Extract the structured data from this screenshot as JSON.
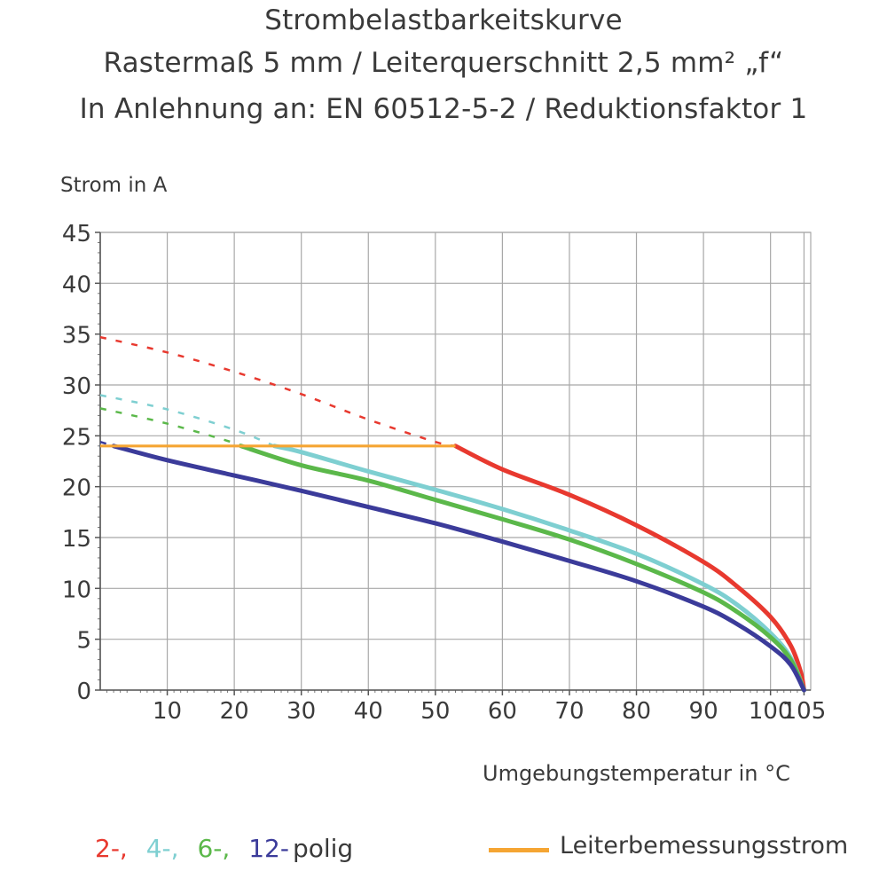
{
  "chart_data": {
    "type": "line",
    "title": "Strombelastbarkeitskurve",
    "subtitle_lines": [
      "Rastermaß 5 mm / Leiterquerschnitt 2,5 mm² „f“",
      "In Anlehnung an: EN 60512-5-2 / Reduktionsfaktor 1"
    ],
    "ylabel": "Strom in A",
    "xlabel": "Umgebungstemperatur in °C",
    "xlim": [
      0,
      106
    ],
    "ylim": [
      0,
      45
    ],
    "x_ticks": [
      10,
      20,
      30,
      40,
      50,
      60,
      70,
      80,
      90,
      100,
      105
    ],
    "x_tick_labels": [
      "10",
      "20",
      "30",
      "40",
      "50",
      "60",
      "70",
      "80",
      "90",
      "100",
      "105"
    ],
    "y_ticks": [
      0,
      5,
      10,
      15,
      20,
      25,
      30,
      35,
      40,
      45
    ],
    "y_tick_labels": [
      "0",
      "5",
      "10",
      "15",
      "20",
      "25",
      "30",
      "35",
      "40",
      "45"
    ],
    "grid": true,
    "rated_current": {
      "name": "Leiterbemessungsstrom",
      "value": 24,
      "x_range": [
        0,
        53
      ],
      "color": "#f5a533"
    },
    "series": [
      {
        "name": "2-",
        "color": "#e8392f",
        "dashed": [
          [
            0,
            34.7
          ],
          [
            10,
            33.2
          ],
          [
            20,
            31.3
          ],
          [
            30,
            29.1
          ],
          [
            40,
            26.6
          ],
          [
            50,
            24.4
          ],
          [
            53,
            24
          ]
        ],
        "solid": [
          [
            53,
            24
          ],
          [
            60,
            21.7
          ],
          [
            70,
            19.2
          ],
          [
            80,
            16.2
          ],
          [
            90,
            12.6
          ],
          [
            95,
            10.2
          ],
          [
            100,
            7.2
          ],
          [
            103,
            4.4
          ],
          [
            104.5,
            1.8
          ],
          [
            105,
            0
          ]
        ]
      },
      {
        "name": "4-",
        "color": "#7ecfd1",
        "dashed": [
          [
            0,
            29
          ],
          [
            10,
            27.6
          ],
          [
            20,
            25.6
          ],
          [
            26,
            24
          ]
        ],
        "solid": [
          [
            26,
            24
          ],
          [
            30,
            23.4
          ],
          [
            40,
            21.5
          ],
          [
            50,
            19.7
          ],
          [
            60,
            17.8
          ],
          [
            70,
            15.7
          ],
          [
            80,
            13.4
          ],
          [
            90,
            10.4
          ],
          [
            95,
            8.4
          ],
          [
            100,
            5.6
          ],
          [
            103,
            3.2
          ],
          [
            105,
            0
          ]
        ]
      },
      {
        "name": "6-",
        "color": "#5bb84a",
        "dashed": [
          [
            0,
            27.7
          ],
          [
            10,
            26.2
          ],
          [
            20,
            24.3
          ],
          [
            21,
            24
          ]
        ],
        "solid": [
          [
            21,
            24
          ],
          [
            30,
            22.1
          ],
          [
            40,
            20.6
          ],
          [
            50,
            18.7
          ],
          [
            60,
            16.8
          ],
          [
            70,
            14.8
          ],
          [
            80,
            12.4
          ],
          [
            90,
            9.6
          ],
          [
            95,
            7.7
          ],
          [
            100,
            5.2
          ],
          [
            103,
            3.0
          ],
          [
            105,
            0
          ]
        ]
      },
      {
        "name": "12-",
        "color": "#3b3b9a",
        "dashed": [
          [
            0,
            24.4
          ],
          [
            2,
            24
          ]
        ],
        "solid": [
          [
            2,
            24
          ],
          [
            10,
            22.6
          ],
          [
            20,
            21.1
          ],
          [
            30,
            19.6
          ],
          [
            40,
            18
          ],
          [
            50,
            16.4
          ],
          [
            60,
            14.6
          ],
          [
            70,
            12.7
          ],
          [
            80,
            10.7
          ],
          [
            90,
            8.2
          ],
          [
            95,
            6.5
          ],
          [
            100,
            4.3
          ],
          [
            103,
            2.5
          ],
          [
            105,
            0
          ]
        ]
      }
    ]
  },
  "legend": {
    "items": [
      {
        "label": "2-,",
        "color": "#e8392f"
      },
      {
        "label": "4-,",
        "color": "#7ecfd1"
      },
      {
        "label": "6-,",
        "color": "#5bb84a"
      },
      {
        "label": "12-",
        "color": "#3b3b9a"
      }
    ],
    "suffix": "polig",
    "conductor_label": "Leiterbemessungsstrom"
  }
}
